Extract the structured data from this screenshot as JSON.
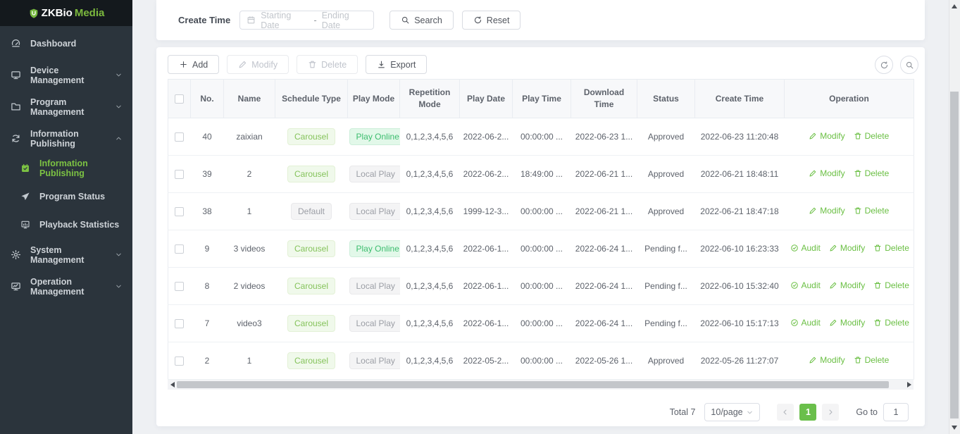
{
  "brand": {
    "name_primary": "ZKBio",
    "name_secondary": "Media"
  },
  "sidebar": {
    "items": [
      {
        "type": "item",
        "label": "Dashboard",
        "icon": "dashboard"
      },
      {
        "type": "item",
        "label": "Device Management",
        "icon": "device",
        "chevron": "down"
      },
      {
        "type": "item",
        "label": "Program Management",
        "icon": "folder",
        "chevron": "down"
      },
      {
        "type": "item",
        "label": "Information Publishing",
        "icon": "sync",
        "chevron": "up"
      },
      {
        "type": "sub",
        "label": "Information Publishing",
        "icon": "calendar-check",
        "active": true
      },
      {
        "type": "sub",
        "label": "Program Status",
        "icon": "paper-plane"
      },
      {
        "type": "sub",
        "label": "Playback Statistics",
        "icon": "bar-chart"
      },
      {
        "type": "item",
        "label": "System Management",
        "icon": "gear",
        "chevron": "down"
      },
      {
        "type": "item",
        "label": "Operation Management",
        "icon": "monitor-chart",
        "chevron": "down"
      }
    ]
  },
  "filter": {
    "label": "Create Time",
    "start_placeholder": "Starting Date",
    "separator": "-",
    "end_placeholder": "Ending Date",
    "search_label": "Search",
    "reset_label": "Reset"
  },
  "toolbar": {
    "add_label": "Add",
    "modify_label": "Modify",
    "delete_label": "Delete",
    "export_label": "Export"
  },
  "table": {
    "columns": [
      {
        "label": "No."
      },
      {
        "label": "Name"
      },
      {
        "label": "Schedule Type"
      },
      {
        "label": "Play Mode"
      },
      {
        "label": "Repetition Mode"
      },
      {
        "label": "Play Date"
      },
      {
        "label": "Play Time"
      },
      {
        "label": "Download Time"
      },
      {
        "label": "Status"
      },
      {
        "label": "Create Time"
      },
      {
        "label": "Operation"
      }
    ],
    "rows": [
      {
        "no": "40",
        "name": "zaixian",
        "schedule_type": {
          "label": "Carousel",
          "style": "green"
        },
        "play_mode": {
          "label": "Play Online",
          "style": "mint",
          "suffix": "."
        },
        "repetition_mode": "0,1,2,3,4,5,6",
        "play_date": "2022-06-2...",
        "play_time": "00:00:00 ...",
        "download_time": "2022-06-23 1...",
        "status": "Approved",
        "create_time": "2022-06-23 11:20:48",
        "operations": [
          {
            "name": "modify",
            "label": "Modify"
          },
          {
            "name": "delete",
            "label": "Delete"
          }
        ]
      },
      {
        "no": "39",
        "name": "2",
        "schedule_type": {
          "label": "Carousel",
          "style": "green"
        },
        "play_mode": {
          "label": "Local Play",
          "style": "gray"
        },
        "repetition_mode": "0,1,2,3,4,5,6",
        "play_date": "2022-06-2...",
        "play_time": "18:49:00 ...",
        "download_time": "2022-06-21 1...",
        "status": "Approved",
        "create_time": "2022-06-21 18:48:11",
        "operations": [
          {
            "name": "modify",
            "label": "Modify"
          },
          {
            "name": "delete",
            "label": "Delete"
          }
        ]
      },
      {
        "no": "38",
        "name": "1",
        "schedule_type": {
          "label": "Default",
          "style": "gray"
        },
        "play_mode": {
          "label": "Local Play",
          "style": "gray"
        },
        "repetition_mode": "0,1,2,3,4,5,6",
        "play_date": "1999-12-3...",
        "play_time": "00:00:00 ...",
        "download_time": "2022-06-21 1...",
        "status": "Approved",
        "create_time": "2022-06-21 18:47:18",
        "operations": [
          {
            "name": "modify",
            "label": "Modify"
          },
          {
            "name": "delete",
            "label": "Delete"
          }
        ]
      },
      {
        "no": "9",
        "name": "3 videos",
        "schedule_type": {
          "label": "Carousel",
          "style": "green"
        },
        "play_mode": {
          "label": "Play Online",
          "style": "mint",
          "suffix": "."
        },
        "repetition_mode": "0,1,2,3,4,5,6",
        "play_date": "2022-06-1...",
        "play_time": "00:00:00 ...",
        "download_time": "2022-06-24 1...",
        "status": "Pending f...",
        "create_time": "2022-06-10 16:23:33",
        "operations": [
          {
            "name": "audit",
            "label": "Audit"
          },
          {
            "name": "modify",
            "label": "Modify"
          },
          {
            "name": "delete",
            "label": "Delete"
          }
        ]
      },
      {
        "no": "8",
        "name": "2 videos",
        "schedule_type": {
          "label": "Carousel",
          "style": "green"
        },
        "play_mode": {
          "label": "Local Play",
          "style": "gray"
        },
        "repetition_mode": "0,1,2,3,4,5,6",
        "play_date": "2022-06-1...",
        "play_time": "00:00:00 ...",
        "download_time": "2022-06-24 1...",
        "status": "Pending f...",
        "create_time": "2022-06-10 15:32:40",
        "operations": [
          {
            "name": "audit",
            "label": "Audit"
          },
          {
            "name": "modify",
            "label": "Modify"
          },
          {
            "name": "delete",
            "label": "Delete"
          }
        ]
      },
      {
        "no": "7",
        "name": "video3",
        "schedule_type": {
          "label": "Carousel",
          "style": "green"
        },
        "play_mode": {
          "label": "Local Play",
          "style": "gray"
        },
        "repetition_mode": "0,1,2,3,4,5,6",
        "play_date": "2022-06-1...",
        "play_time": "00:00:00 ...",
        "download_time": "2022-06-24 1...",
        "status": "Pending f...",
        "create_time": "2022-06-10 15:17:13",
        "operations": [
          {
            "name": "audit",
            "label": "Audit"
          },
          {
            "name": "modify",
            "label": "Modify"
          },
          {
            "name": "delete",
            "label": "Delete"
          }
        ]
      },
      {
        "no": "2",
        "name": "1",
        "schedule_type": {
          "label": "Carousel",
          "style": "green"
        },
        "play_mode": {
          "label": "Local Play",
          "style": "gray"
        },
        "repetition_mode": "0,1,2,3,4,5,6",
        "play_date": "2022-05-2...",
        "play_time": "00:00:00 ...",
        "download_time": "2022-05-26 1...",
        "status": "Approved",
        "create_time": "2022-05-26 11:27:07",
        "operations": [
          {
            "name": "modify",
            "label": "Modify"
          },
          {
            "name": "delete",
            "label": "Delete"
          }
        ]
      }
    ]
  },
  "pagination": {
    "total_text": "Total 7",
    "page_size": "10/page",
    "current_page": "1",
    "goto_label": "Go to",
    "goto_value": "1"
  },
  "colors": {
    "brand_green": "#7cb93e",
    "accent_green": "#6abf4b",
    "sidebar_bg": "#2b343c",
    "sidebar_header_bg": "#14191d",
    "tag_green_bg": "#f0f9eb",
    "tag_mint_bg": "#e2f8e9",
    "tag_gray_bg": "#f4f4f5"
  }
}
